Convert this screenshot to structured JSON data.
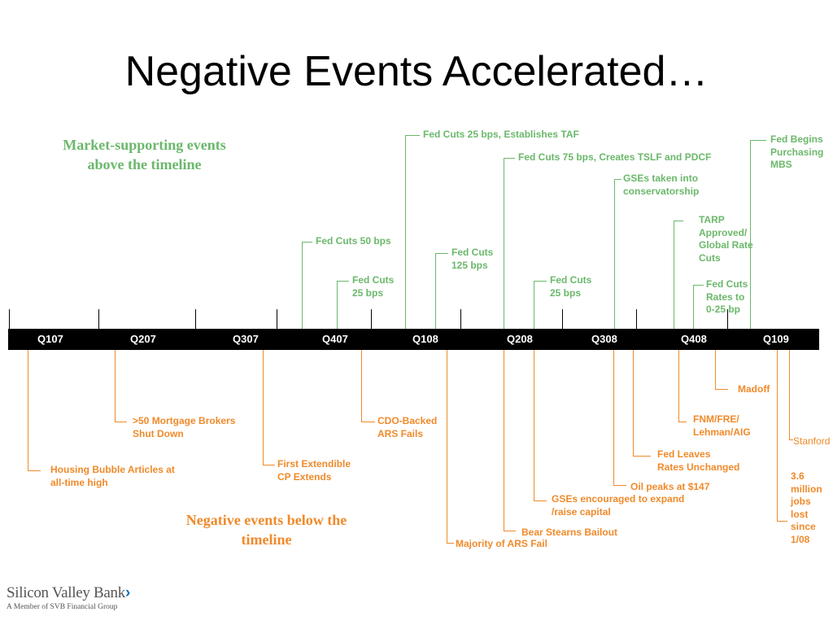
{
  "slide": {
    "title": "Negative Events Accelerated…",
    "legend_above": [
      "Market-supporting events",
      "above the timeline"
    ],
    "legend_below": [
      "Negative events below the",
      "timeline"
    ]
  },
  "timeline": {
    "quarters": [
      "Q107",
      "Q207",
      "Q307",
      "Q407",
      "Q108",
      "Q208",
      "Q308",
      "Q408",
      "Q109"
    ]
  },
  "above_events": [
    {
      "lines": [
        "Fed Cuts 50 bps"
      ]
    },
    {
      "lines": [
        "Fed Cuts",
        "25 bps"
      ]
    },
    {
      "lines": [
        "Fed Cuts 25 bps, Establishes TAF"
      ]
    },
    {
      "lines": [
        "Fed Cuts",
        "125 bps"
      ]
    },
    {
      "lines": [
        "Fed Cuts 75 bps, Creates TSLF and PDCF"
      ]
    },
    {
      "lines": [
        "Fed Cuts",
        "25 bps"
      ]
    },
    {
      "lines": [
        "GSEs taken into",
        "conservatorship"
      ]
    },
    {
      "lines": [
        "TARP",
        "Approved/",
        "Global Rate",
        "Cuts"
      ]
    },
    {
      "lines": [
        "Fed Cuts",
        "Rates to",
        "0-25 bp"
      ]
    },
    {
      "lines": [
        "Fed Begins",
        "Purchasing",
        "MBS"
      ]
    }
  ],
  "below_events": [
    {
      "lines": [
        "Housing Bubble Articles at",
        "all-time high"
      ]
    },
    {
      "lines": [
        ">50 Mortgage Brokers",
        "Shut Down"
      ]
    },
    {
      "lines": [
        "First Extendible",
        "CP Extends"
      ]
    },
    {
      "lines": [
        "CDO-Backed",
        "ARS Fails"
      ]
    },
    {
      "lines": [
        "Majority of ARS Fail"
      ]
    },
    {
      "lines": [
        "Bear Stearns Bailout"
      ]
    },
    {
      "lines": [
        "GSEs encouraged to expand",
        "/raise capital"
      ]
    },
    {
      "lines": [
        "Oil peaks at $147"
      ]
    },
    {
      "lines": [
        "Fed Leaves",
        "Rates Unchanged"
      ]
    },
    {
      "lines": [
        "FNM/FRE/",
        "Lehman/AIG"
      ]
    },
    {
      "lines": [
        "Madoff"
      ]
    },
    {
      "lines": [
        "3.6",
        "million",
        "jobs",
        "lost",
        "since",
        "1/08"
      ]
    },
    {
      "lines": [
        "Stanford"
      ]
    }
  ],
  "footer": {
    "logo_name": "Silicon Valley Bank",
    "logo_tagline": "A Member of SVB Financial Group"
  },
  "colors": {
    "positive": "#6bb86b",
    "negative": "#f08a2a",
    "bar": "#000000"
  }
}
